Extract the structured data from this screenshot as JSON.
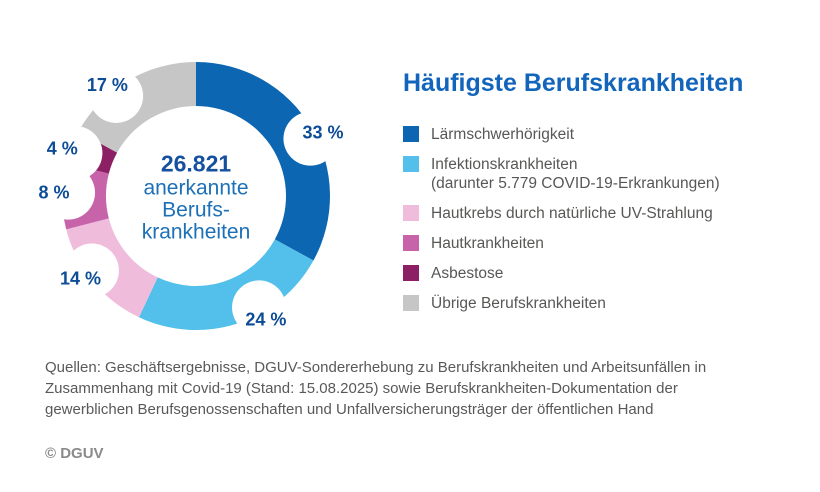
{
  "title": "Häufigste Berufskrankheiten",
  "chart_data": {
    "type": "pie",
    "subtype": "donut",
    "title": "Häufigste Berufskrankheiten",
    "units": "%",
    "legend_position": "right",
    "start_angle_deg": 0,
    "direction": "clockwise",
    "center_total": {
      "value": "26.821",
      "label_lines": [
        "anerkannte",
        "Berufs-",
        "krankheiten"
      ]
    },
    "slices": [
      {
        "name": "Lärmschwerhörigkeit",
        "value": 33,
        "label": "33 %",
        "color": "#0d66b1"
      },
      {
        "name": "Infektionskrankheiten",
        "value": 24,
        "label": "24 %",
        "color": "#52c0ea"
      },
      {
        "name": "Hautkrebs durch natürliche UV-Strahlung",
        "value": 14,
        "label": "14 %",
        "color": "#f0bcdc"
      },
      {
        "name": "Hautkrankheiten",
        "value": 8,
        "label": "8 %",
        "color": "#c763a9"
      },
      {
        "name": "Asbestose",
        "value": 4,
        "label": "4 %",
        "color": "#8b2164"
      },
      {
        "name": "Übrige Berufskrankheiten",
        "value": 17,
        "label": "17 %",
        "color": "#c6c6c6"
      }
    ]
  },
  "legend": {
    "items": [
      {
        "label_lines": [
          "Lärmschwerhörigkeit"
        ],
        "color": "#0d66b1"
      },
      {
        "label_lines": [
          "Infektionskrankheiten",
          "(darunter 5.779 COVID-19-Erkrankungen)"
        ],
        "color": "#52c0ea"
      },
      {
        "label_lines": [
          "Hautkrebs durch natürliche UV-Strahlung"
        ],
        "color": "#f0bcdc"
      },
      {
        "label_lines": [
          "Hautkrankheiten"
        ],
        "color": "#c763a9"
      },
      {
        "label_lines": [
          "Asbestose"
        ],
        "color": "#8b2164"
      },
      {
        "label_lines": [
          "Übrige Berufskrankheiten"
        ],
        "color": "#c6c6c6"
      }
    ]
  },
  "source": {
    "lines": [
      "Quellen: Geschäftsergebnisse, DGUV-Sondererhebung zu Berufskrankheiten und Arbeitsunfällen in",
      "Zusammenhang mit Covid-19 (Stand: 15.08.2025) sowie Berufskrankheiten-Dokumentation der",
      "gewerblichen Berufsgenossenschaften und Unfallversicherungsträger der öffentlichen Hand"
    ]
  },
  "copyright": "© DGUV"
}
